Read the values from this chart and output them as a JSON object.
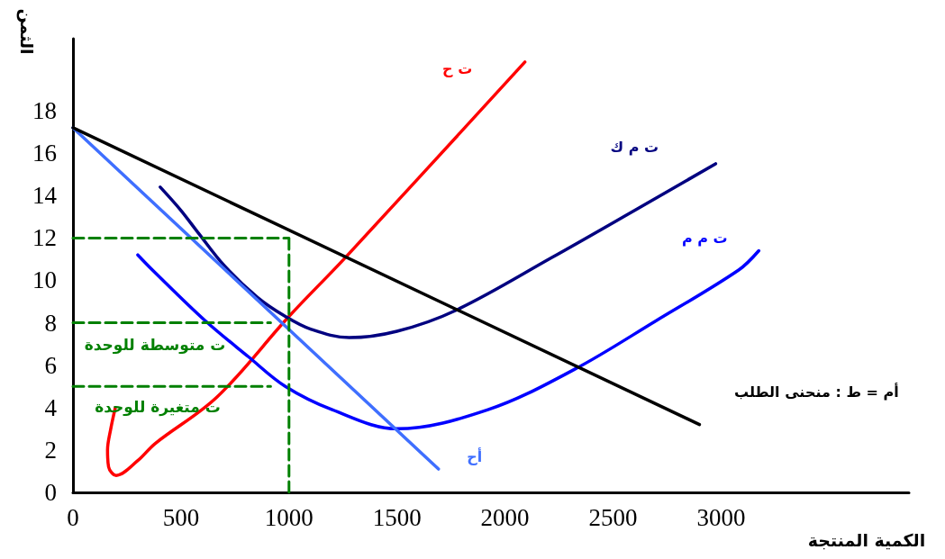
{
  "chart_data": {
    "type": "line",
    "xlabel": "الكمية المنتجة",
    "ylabel": "الثمن",
    "xlim": [
      0,
      3870
    ],
    "xticks": [
      0,
      500,
      1000,
      1500,
      2000,
      2500,
      3000
    ],
    "ylim": [
      0,
      21.4
    ],
    "yticks": [
      0,
      2,
      4,
      6,
      8,
      10,
      12,
      14,
      16,
      18
    ],
    "grid": false,
    "legend": false,
    "marker": "none",
    "line_style": "solid",
    "series": [
      {
        "name": "ت ح",
        "color": "#ff0000",
        "x": [
          196,
          175,
          160,
          165,
          200,
          300,
          380,
          667,
          1000,
          1263,
          2092
        ],
        "values": [
          4.0,
          3.0,
          2.0,
          1.2,
          0.8,
          1.5,
          2.3,
          4.5,
          8.3,
          11.1,
          20.3
        ]
      },
      {
        "name": "ت م ك",
        "color": "#000080",
        "x": [
          404,
          500,
          583,
          700,
          854,
          983,
          1100,
          1279,
          1500,
          1775,
          2221,
          2600,
          2975
        ],
        "values": [
          14.4,
          13.3,
          12.2,
          10.7,
          9.2,
          8.3,
          7.7,
          7.3,
          7.6,
          8.6,
          11.1,
          13.3,
          15.5
        ]
      },
      {
        "name": "ت م م",
        "color": "#0000ff",
        "x": [
          300,
          367,
          612,
          812,
          983,
          1200,
          1500,
          1921,
          2321,
          2700,
          3083,
          3175
        ],
        "values": [
          11.2,
          10.5,
          8.1,
          6.4,
          5.0,
          3.9,
          3.0,
          3.9,
          5.8,
          8.1,
          10.5,
          11.4
        ]
      },
      {
        "name": "أح",
        "color": "#3f6fff",
        "x": [
          0,
          1692
        ],
        "values": [
          17.2,
          1.1
        ]
      },
      {
        "name": "أم = ط : منحنى الطلب",
        "color": "#000000",
        "x": [
          0,
          2900
        ],
        "values": [
          17.2,
          3.2
        ]
      },
      {
        "color": "#008000",
        "line_style": "dashed",
        "x": [
          0,
          1000
        ],
        "values": [
          12,
          12
        ]
      },
      {
        "color": "#008000",
        "line_style": "dashed",
        "x": [
          0,
          915
        ],
        "values": [
          8,
          8
        ]
      },
      {
        "color": "#008000",
        "line_style": "dashed",
        "x": [
          0,
          915
        ],
        "values": [
          5,
          5
        ]
      },
      {
        "color": "#008000",
        "line_style": "dashed",
        "x": [
          1000,
          1000
        ],
        "values": [
          0,
          12
        ]
      }
    ],
    "annotations": [
      "ت متوسطة للوحدة",
      "ت متغيرة للوحدة"
    ]
  }
}
